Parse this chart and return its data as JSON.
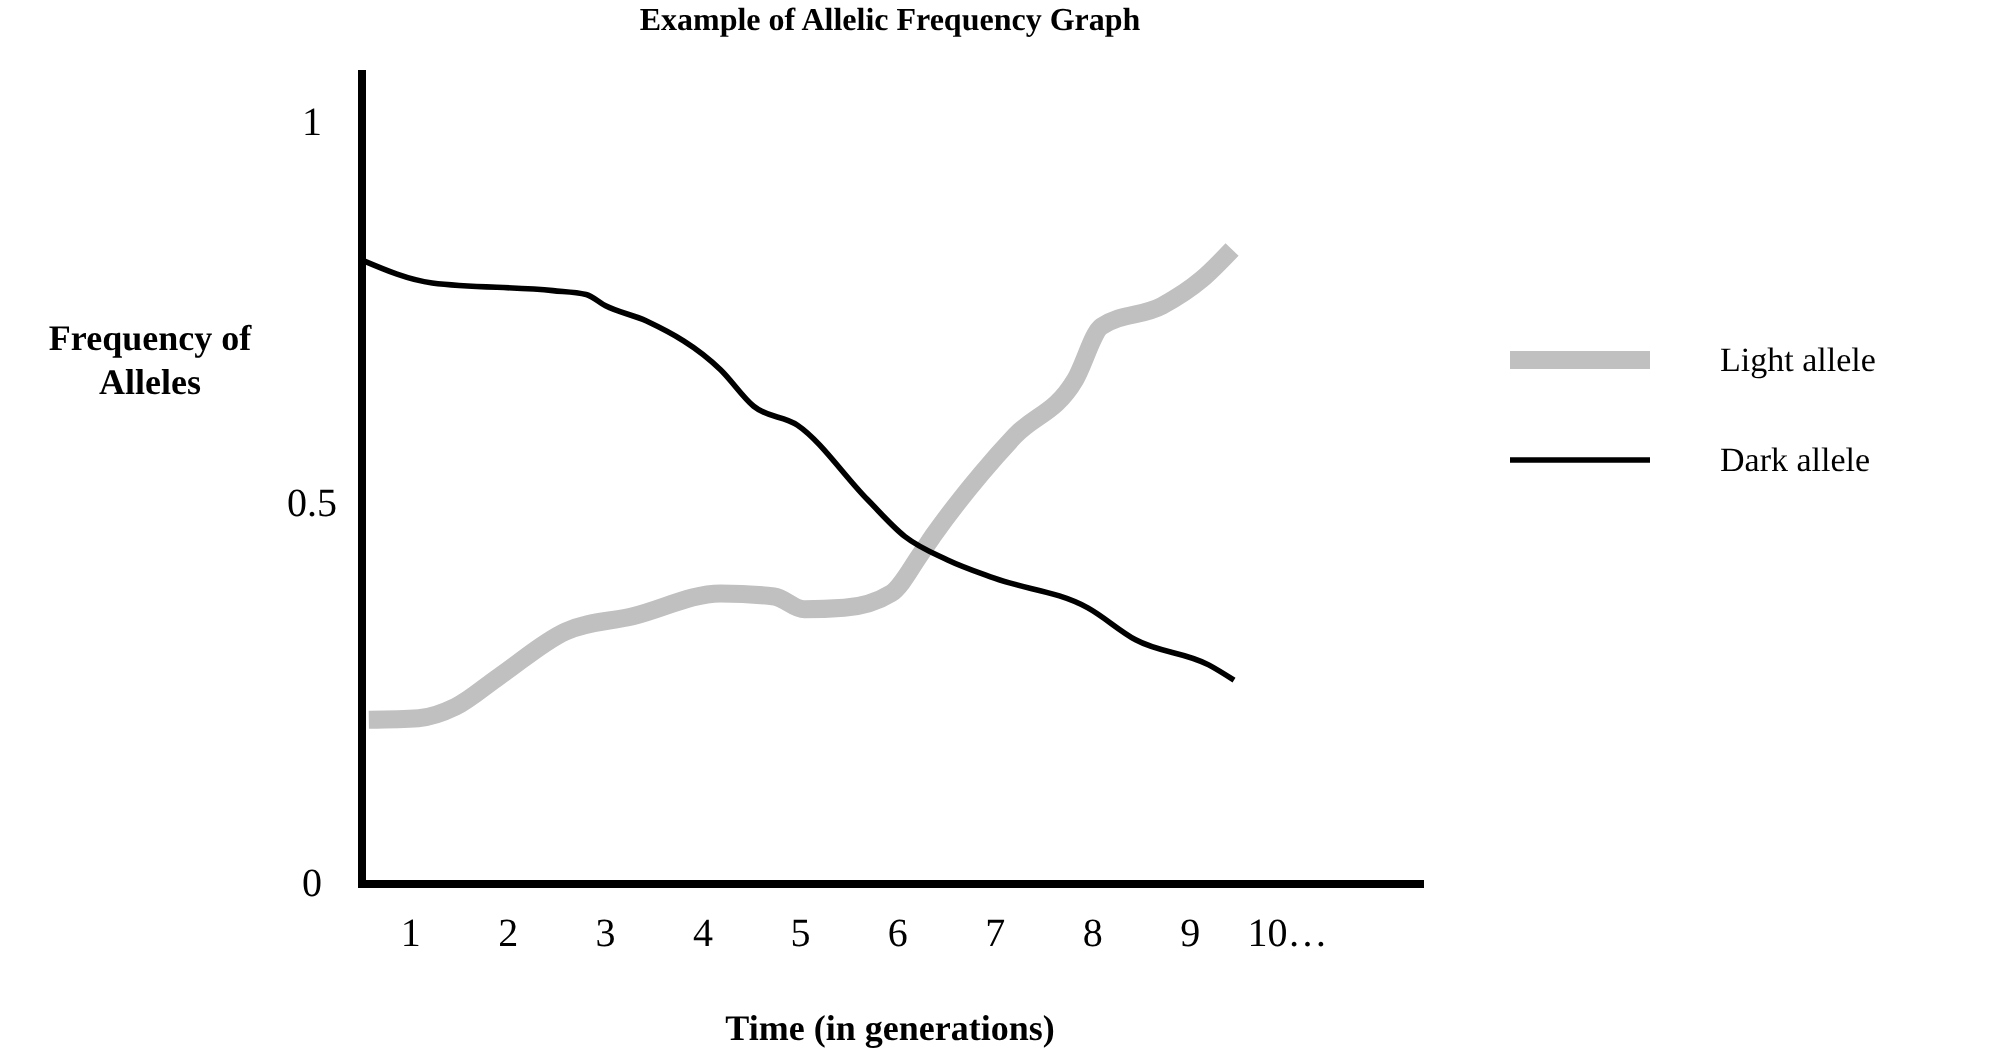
{
  "chart_data": {
    "type": "line",
    "title": "Example of Allelic Frequency Graph",
    "xlabel": "Time (in generations)",
    "ylabel": "Frequency of Alleles",
    "xlim": [
      0.5,
      11.4
    ],
    "ylim": [
      0,
      1.07
    ],
    "xticks": [
      1,
      2,
      3,
      4,
      5,
      6,
      7,
      8,
      9,
      {
        "value": 10,
        "label": "10…"
      }
    ],
    "yticks": [
      0,
      0.5,
      1
    ],
    "legend": "right",
    "grid": false,
    "marker": "none",
    "line_style": "solid",
    "series": [
      {
        "name": "Light allele",
        "color": "#c0c0c0",
        "x": [
          0.57,
          1.08,
          1.46,
          1.91,
          2.59,
          3.28,
          4.18,
          4.73,
          5.04,
          5.45,
          5.93,
          6.24,
          6.38,
          6.86,
          7.2,
          7.82,
          8.09,
          8.71,
          9.12,
          9.43
        ],
        "values": [
          0.216,
          0.218,
          0.233,
          0.273,
          0.332,
          0.352,
          0.382,
          0.378,
          0.361,
          0.363,
          0.382,
          0.435,
          0.461,
          0.54,
          0.589,
          0.663,
          0.733,
          0.76,
          0.795,
          0.834
        ]
      },
      {
        "name": "Dark allele",
        "color": "#000000",
        "x": [
          0.5,
          1.22,
          2.46,
          2.8,
          3.0,
          3.42,
          4.18,
          4.52,
          4.97,
          5.69,
          6.07,
          6.51,
          6.99,
          7.95,
          8.44,
          9.19,
          9.45
        ],
        "values": [
          0.82,
          0.79,
          0.78,
          0.775,
          0.76,
          0.74,
          0.676,
          0.628,
          0.603,
          0.505,
          0.457,
          0.426,
          0.402,
          0.363,
          0.321,
          0.288,
          0.268
        ]
      }
    ]
  }
}
